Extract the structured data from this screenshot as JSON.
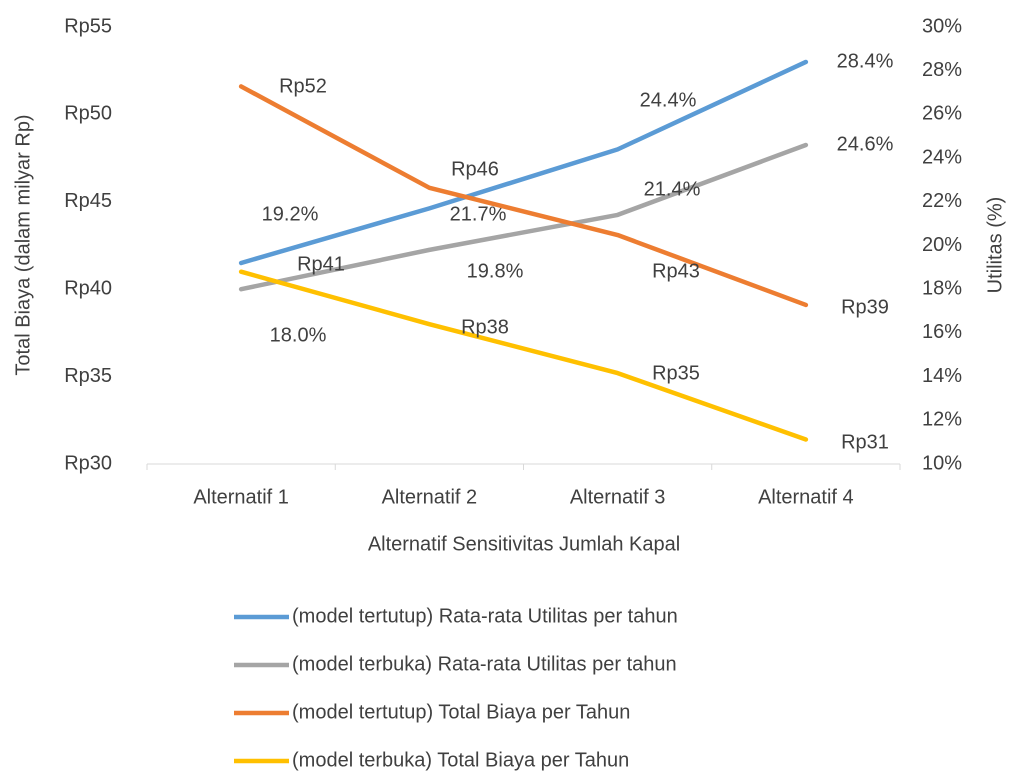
{
  "chart_data": {
    "type": "line",
    "categories": [
      "Alternatif 1",
      "Alternatif 2",
      "Alternatif 3",
      "Alternatif 4"
    ],
    "x_label": "Alternatif Sensitivitas Jumlah Kapal",
    "y_label": "Total Biaya (dalam milyar Rp)",
    "y2_label": "Utilitas (%)",
    "ylim": [
      30,
      55
    ],
    "yticks": [
      {
        "value": 30,
        "label": "Rp30"
      },
      {
        "value": 35,
        "label": "Rp35"
      },
      {
        "value": 40,
        "label": "Rp40"
      },
      {
        "value": 45,
        "label": "Rp45"
      },
      {
        "value": 50,
        "label": "Rp50"
      },
      {
        "value": 55,
        "label": "Rp55"
      }
    ],
    "y2lim": [
      10,
      30
    ],
    "y2ticks": [
      {
        "value": 10,
        "label": "10%"
      },
      {
        "value": 12,
        "label": "12%"
      },
      {
        "value": 14,
        "label": "14%"
      },
      {
        "value": 16,
        "label": "16%"
      },
      {
        "value": 18,
        "label": "18%"
      },
      {
        "value": 20,
        "label": "20%"
      },
      {
        "value": 22,
        "label": "22%"
      },
      {
        "value": 24,
        "label": "24%"
      },
      {
        "value": 26,
        "label": "26%"
      },
      {
        "value": 28,
        "label": "28%"
      },
      {
        "value": 30,
        "label": "30%"
      }
    ],
    "legend": "bottom",
    "series": [
      {
        "name": "(model tertutup) Rata-rata Utilitas per tahun",
        "color": "#5b9bd5",
        "axis": "y2",
        "values": [
          19.2,
          21.7,
          24.4,
          28.4
        ],
        "value_labels": [
          "19.2%",
          "21.7%",
          "24.4%",
          "28.4%"
        ]
      },
      {
        "name": "(model terbuka) Rata-rata Utilitas per tahun",
        "color": "#a5a5a5",
        "axis": "y2",
        "values": [
          18.0,
          19.8,
          21.4,
          24.6
        ],
        "value_labels": [
          "18.0%",
          "19.8%",
          "21.4%",
          "24.6%"
        ]
      },
      {
        "name": "(model tertutup) Total Biaya per Tahun",
        "color": "#ed7d31",
        "values": [
          51.6,
          45.8,
          43.1,
          39.1
        ],
        "value_labels": [
          "Rp52",
          "Rp46",
          "Rp43",
          "Rp39"
        ]
      },
      {
        "name": "(model terbuka) Total Biaya per Tahun",
        "color": "#ffc000",
        "values": [
          41.0,
          38.0,
          35.2,
          31.4
        ],
        "value_labels": [
          "Rp41",
          "Rp38",
          "Rp35",
          "Rp31"
        ]
      }
    ]
  }
}
